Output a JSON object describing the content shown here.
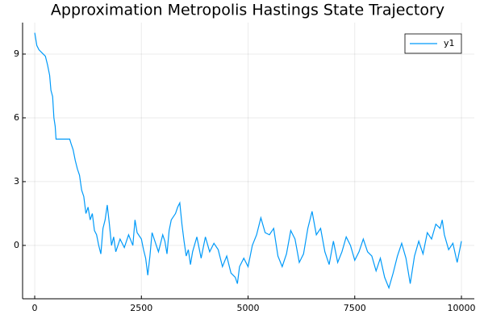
{
  "chart_data": {
    "type": "line",
    "title": "Approximation Metropolis Hastings State Trajectory",
    "x": [
      1,
      50,
      100,
      200,
      250,
      300,
      350,
      380,
      420,
      450,
      480,
      500,
      820,
      850,
      900,
      950,
      1000,
      1050,
      1100,
      1150,
      1200,
      1250,
      1300,
      1350,
      1400,
      1450,
      1500,
      1550,
      1600,
      1650,
      1700,
      1750,
      1800,
      1850,
      1900,
      2000,
      2100,
      2200,
      2300,
      2350,
      2400,
      2500,
      2550,
      2600,
      2650,
      2700,
      2750,
      2800,
      2900,
      3000,
      3050,
      3100,
      3150,
      3200,
      3300,
      3350,
      3400,
      3450,
      3500,
      3550,
      3600,
      3650,
      3700,
      3800,
      3900,
      4000,
      4100,
      4200,
      4300,
      4400,
      4500,
      4600,
      4700,
      4750,
      4800,
      4900,
      5000,
      5100,
      5200,
      5300,
      5400,
      5500,
      5600,
      5700,
      5800,
      5900,
      6000,
      6100,
      6200,
      6300,
      6400,
      6450,
      6500,
      6600,
      6700,
      6800,
      6900,
      7000,
      7100,
      7200,
      7300,
      7400,
      7500,
      7600,
      7700,
      7800,
      7900,
      8000,
      8100,
      8200,
      8300,
      8400,
      8500,
      8600,
      8700,
      8800,
      8900,
      9000,
      9100,
      9200,
      9300,
      9400,
      9500,
      9550,
      9600,
      9700,
      9800,
      9900,
      9950,
      10000
    ],
    "series": [
      {
        "name": "y1",
        "color": "#009af9",
        "values": [
          10.0,
          9.4,
          9.2,
          9.0,
          8.9,
          8.5,
          8.0,
          7.3,
          7.0,
          6.0,
          5.6,
          5.0,
          5.0,
          4.8,
          4.5,
          4.0,
          3.6,
          3.3,
          2.6,
          2.3,
          1.5,
          1.8,
          1.2,
          1.5,
          0.7,
          0.5,
          0.0,
          -0.4,
          0.8,
          1.2,
          1.9,
          1.0,
          0.0,
          0.4,
          -0.3,
          0.3,
          -0.1,
          0.5,
          0.0,
          1.2,
          0.6,
          0.3,
          -0.2,
          -0.6,
          -1.4,
          -0.5,
          0.6,
          0.3,
          -0.3,
          0.5,
          0.2,
          -0.4,
          0.7,
          1.2,
          1.5,
          1.8,
          2.0,
          1.0,
          0.2,
          -0.5,
          -0.2,
          -0.9,
          -0.3,
          0.4,
          -0.6,
          0.4,
          -0.3,
          0.1,
          -0.2,
          -1.0,
          -0.5,
          -1.3,
          -1.5,
          -1.8,
          -1.0,
          -0.6,
          -1.0,
          0.0,
          0.5,
          1.3,
          0.6,
          0.5,
          0.8,
          -0.5,
          -1.0,
          -0.4,
          0.7,
          0.3,
          -0.8,
          -0.4,
          0.8,
          1.2,
          1.6,
          0.5,
          0.8,
          -0.3,
          -0.9,
          0.2,
          -0.8,
          -0.3,
          0.4,
          0.0,
          -0.7,
          -0.3,
          0.3,
          -0.3,
          -0.5,
          -1.2,
          -0.6,
          -1.5,
          -2.0,
          -1.3,
          -0.5,
          0.1,
          -0.6,
          -1.8,
          -0.5,
          0.2,
          -0.4,
          0.6,
          0.3,
          1.0,
          0.8,
          1.2,
          0.5,
          -0.2,
          0.1,
          -0.8,
          -0.3,
          0.2
        ]
      }
    ],
    "xlim": [
      -284,
      10302
    ],
    "ylim": [
      -2.51,
      10.48
    ],
    "xticks": [
      0,
      2500,
      5000,
      7500,
      10000
    ],
    "yticks": [
      0,
      3,
      6,
      9
    ],
    "grid": true,
    "legend": "top-right"
  }
}
